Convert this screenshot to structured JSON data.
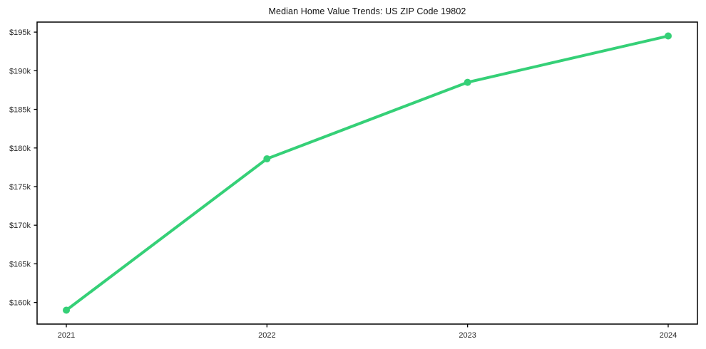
{
  "chart_data": {
    "type": "line",
    "title": "Median Home Value Trends: US ZIP Code 19802",
    "xlabel": "",
    "ylabel": "",
    "x": [
      2021,
      2022,
      2023,
      2024
    ],
    "x_tick_labels": [
      "2021",
      "2022",
      "2023",
      "2024"
    ],
    "values": [
      159000,
      178600,
      188500,
      194500
    ],
    "y_tick_values": [
      160000,
      165000,
      170000,
      175000,
      180000,
      185000,
      190000,
      195000
    ],
    "y_tick_labels": [
      "$160k",
      "$165k",
      "$170k",
      "$175k",
      "$180k",
      "$185k",
      "$190k",
      "$195k"
    ],
    "ylim": [
      157200,
      196300
    ],
    "xlim_pad_fraction": 0.0443,
    "grid": false,
    "legend": "none",
    "line_color": "#35d077",
    "marker": "circle",
    "marker_radius": 5,
    "line_width": 4,
    "axis_color": "#000000",
    "tick_label_color": "#262626",
    "title_color": "#111111",
    "background_color": "#ffffff"
  }
}
